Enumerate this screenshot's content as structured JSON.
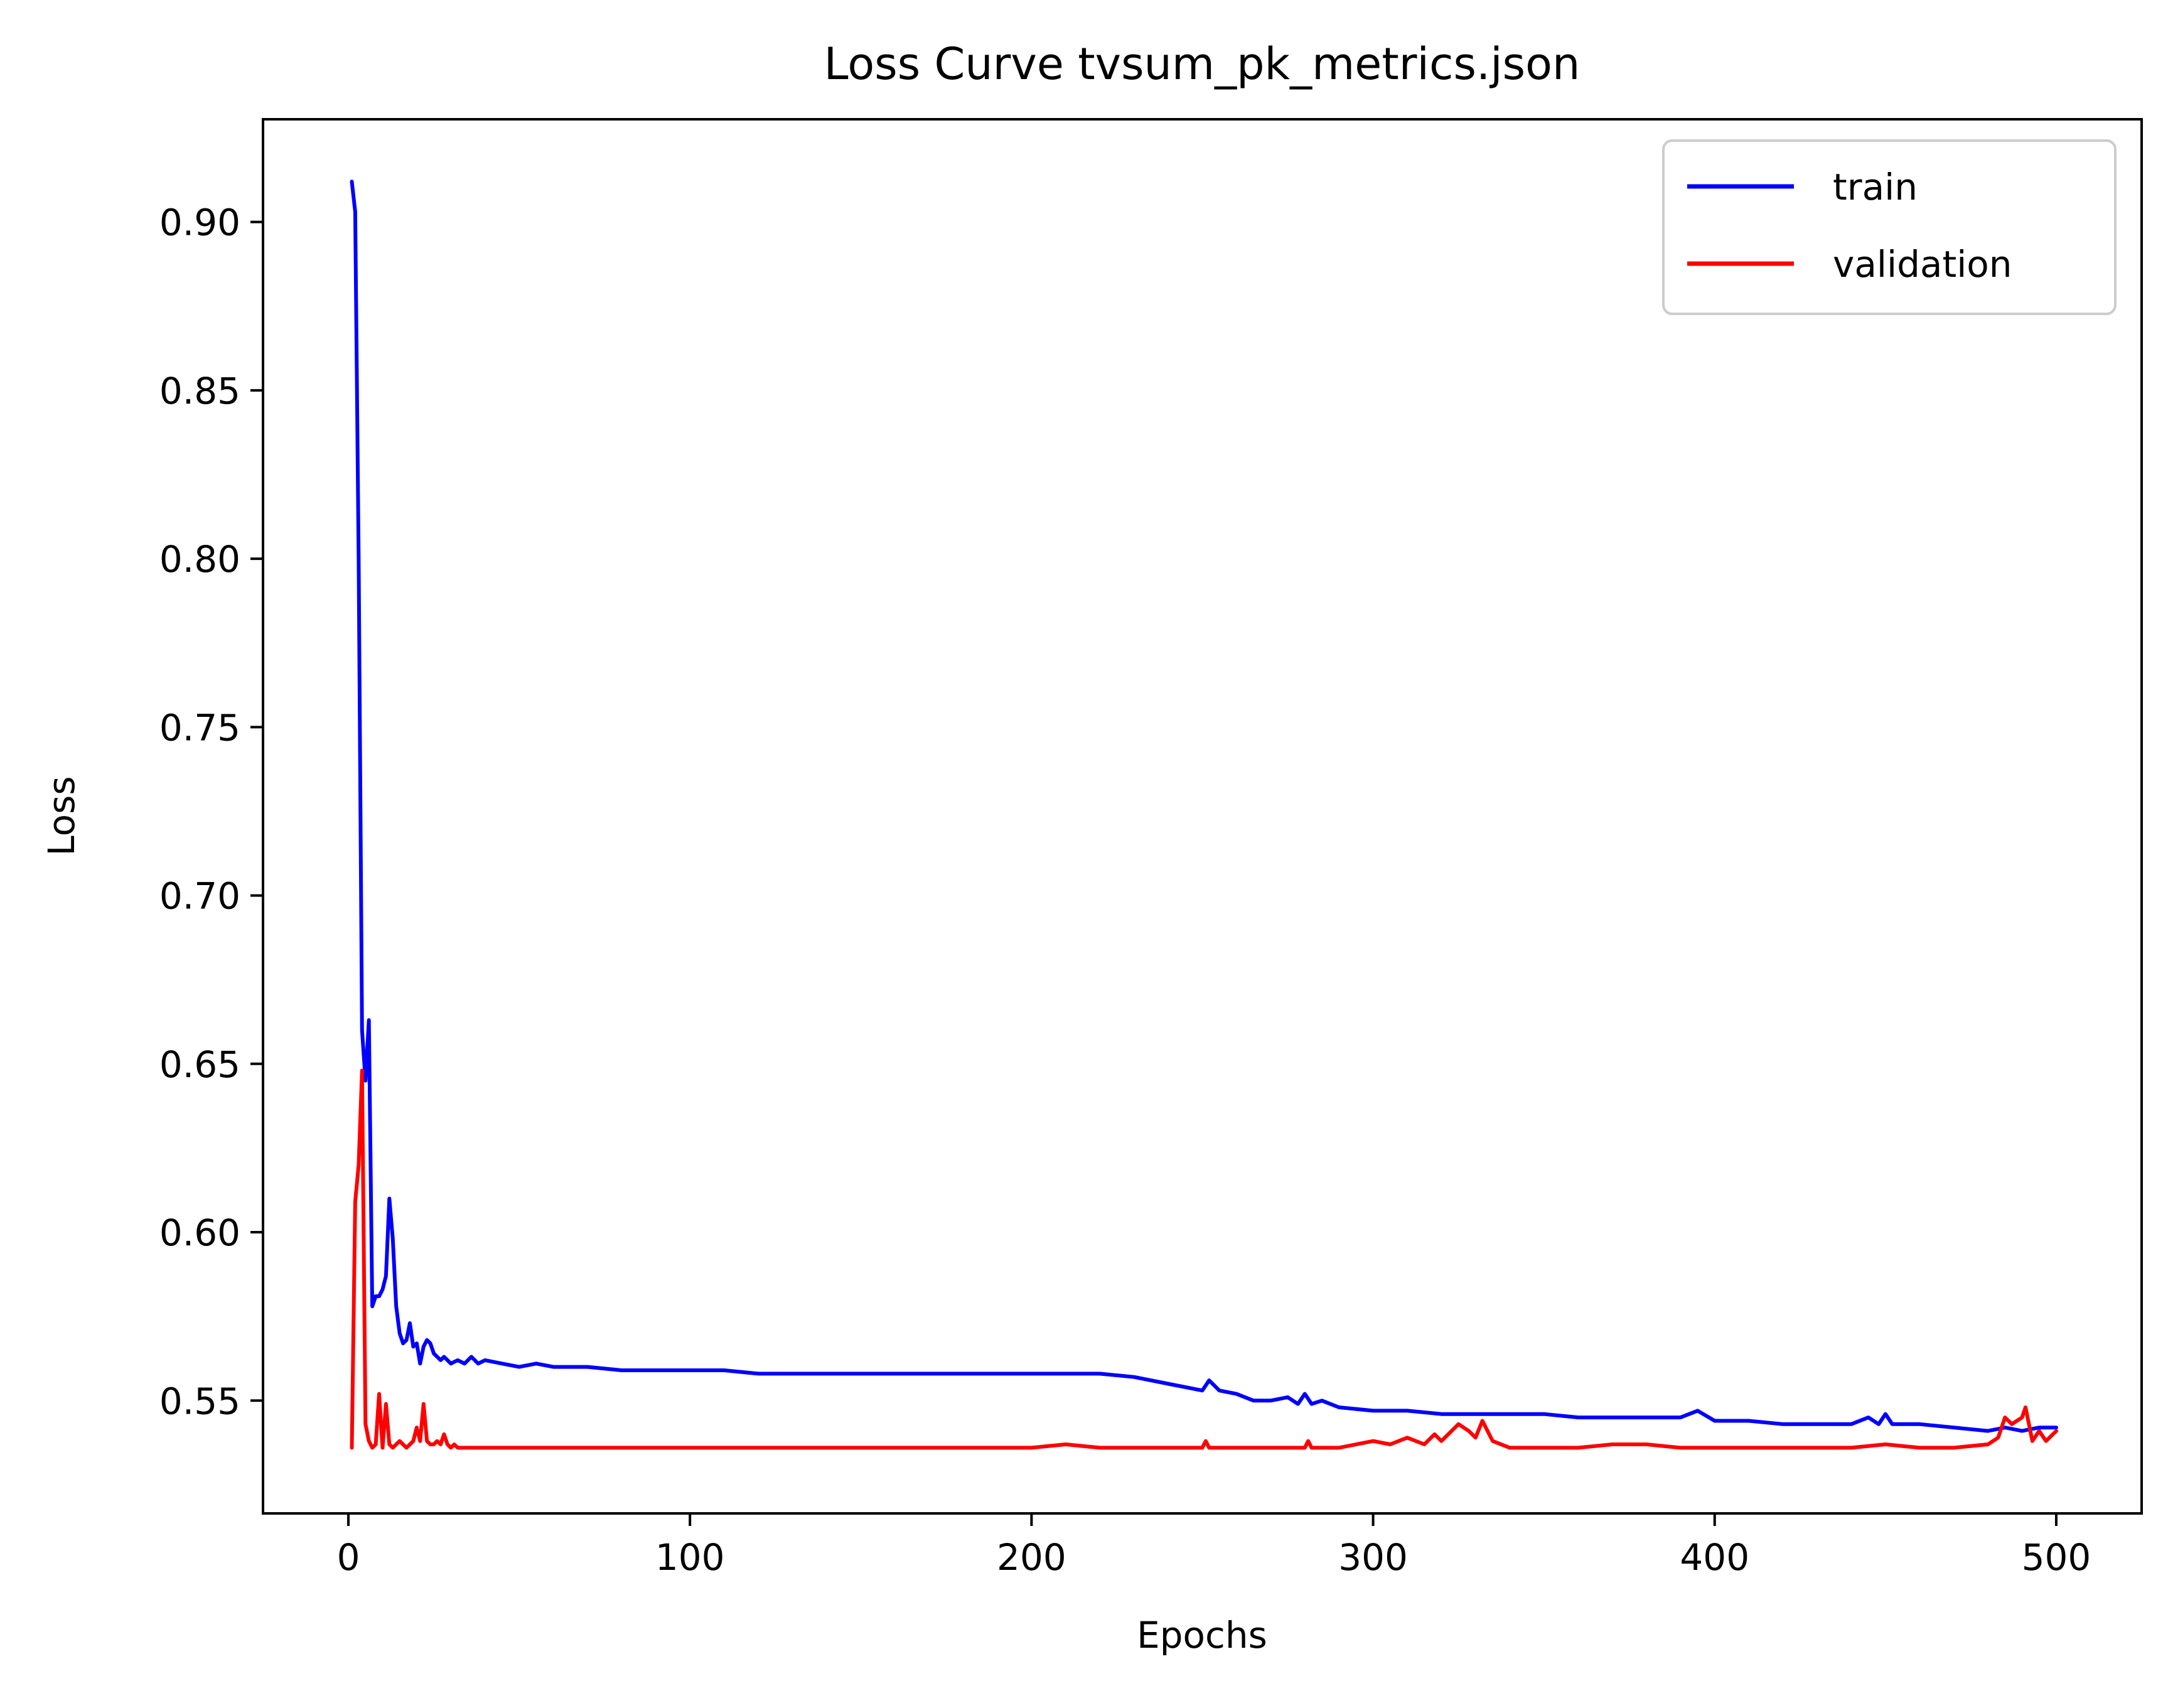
{
  "chart_data": {
    "type": "line",
    "title": "Loss Curve tvsum_pk_metrics.json",
    "xlabel": "Epochs",
    "ylabel": "Loss",
    "xlim": [
      -25,
      525
    ],
    "ylim": [
      0.5165,
      0.9305
    ],
    "xticks": [
      0,
      100,
      200,
      300,
      400,
      500
    ],
    "yticks": [
      0.55,
      0.6,
      0.65,
      0.7,
      0.75,
      0.8,
      0.85,
      0.9
    ],
    "ytick_labels": [
      "0.55",
      "0.60",
      "0.65",
      "0.70",
      "0.75",
      "0.80",
      "0.85",
      "0.90"
    ],
    "grid": false,
    "legend": {
      "position": "top-right",
      "entries": [
        "train",
        "validation"
      ]
    },
    "series": [
      {
        "name": "train",
        "color": "#0000ff",
        "x": [
          1,
          2,
          3,
          4,
          5,
          6,
          7,
          8,
          9,
          10,
          11,
          12,
          13,
          14,
          15,
          16,
          17,
          18,
          19,
          20,
          21,
          22,
          23,
          24,
          25,
          26,
          27,
          28,
          30,
          32,
          34,
          36,
          38,
          40,
          45,
          50,
          55,
          60,
          70,
          80,
          90,
          100,
          110,
          120,
          130,
          140,
          150,
          160,
          170,
          180,
          190,
          200,
          210,
          220,
          230,
          240,
          250,
          252,
          255,
          260,
          265,
          270,
          275,
          278,
          280,
          282,
          285,
          290,
          300,
          310,
          320,
          330,
          340,
          350,
          360,
          370,
          380,
          390,
          395,
          400,
          410,
          420,
          430,
          440,
          445,
          448,
          450,
          452,
          455,
          460,
          470,
          480,
          485,
          490,
          495,
          500
        ],
        "y": [
          0.912,
          0.903,
          0.8,
          0.66,
          0.645,
          0.663,
          0.578,
          0.581,
          0.581,
          0.583,
          0.587,
          0.61,
          0.598,
          0.578,
          0.57,
          0.567,
          0.568,
          0.573,
          0.566,
          0.567,
          0.561,
          0.566,
          0.568,
          0.567,
          0.564,
          0.563,
          0.562,
          0.563,
          0.561,
          0.562,
          0.561,
          0.563,
          0.561,
          0.562,
          0.561,
          0.56,
          0.561,
          0.56,
          0.56,
          0.559,
          0.559,
          0.559,
          0.559,
          0.558,
          0.558,
          0.558,
          0.558,
          0.558,
          0.558,
          0.558,
          0.558,
          0.558,
          0.558,
          0.558,
          0.557,
          0.555,
          0.553,
          0.556,
          0.553,
          0.552,
          0.55,
          0.55,
          0.551,
          0.549,
          0.552,
          0.549,
          0.55,
          0.548,
          0.547,
          0.547,
          0.546,
          0.546,
          0.546,
          0.546,
          0.545,
          0.545,
          0.545,
          0.545,
          0.547,
          0.544,
          0.544,
          0.543,
          0.543,
          0.543,
          0.545,
          0.543,
          0.546,
          0.543,
          0.543,
          0.543,
          0.542,
          0.541,
          0.542,
          0.541,
          0.542,
          0.542
        ]
      },
      {
        "name": "validation",
        "color": "#ff0000",
        "x": [
          1,
          2,
          3,
          4,
          5,
          6,
          7,
          8,
          9,
          10,
          11,
          12,
          13,
          14,
          15,
          16,
          17,
          18,
          19,
          20,
          21,
          22,
          23,
          24,
          25,
          26,
          27,
          28,
          29,
          30,
          31,
          32,
          35,
          40,
          50,
          60,
          70,
          80,
          90,
          100,
          110,
          120,
          130,
          140,
          150,
          160,
          170,
          180,
          190,
          200,
          210,
          220,
          230,
          240,
          250,
          251,
          252,
          260,
          270,
          280,
          281,
          282,
          290,
          300,
          305,
          310,
          315,
          318,
          320,
          325,
          328,
          330,
          332,
          335,
          340,
          350,
          360,
          370,
          380,
          390,
          400,
          410,
          420,
          430,
          440,
          450,
          460,
          470,
          480,
          483,
          485,
          487,
          490,
          491,
          493,
          495,
          497,
          500
        ],
        "y": [
          0.536,
          0.609,
          0.62,
          0.648,
          0.543,
          0.538,
          0.536,
          0.537,
          0.552,
          0.536,
          0.549,
          0.537,
          0.536,
          0.537,
          0.538,
          0.537,
          0.536,
          0.537,
          0.538,
          0.542,
          0.538,
          0.549,
          0.538,
          0.537,
          0.537,
          0.538,
          0.537,
          0.54,
          0.537,
          0.536,
          0.537,
          0.536,
          0.536,
          0.536,
          0.536,
          0.536,
          0.536,
          0.536,
          0.536,
          0.536,
          0.536,
          0.536,
          0.536,
          0.536,
          0.536,
          0.536,
          0.536,
          0.536,
          0.536,
          0.536,
          0.537,
          0.536,
          0.536,
          0.536,
          0.536,
          0.538,
          0.536,
          0.536,
          0.536,
          0.536,
          0.538,
          0.536,
          0.536,
          0.538,
          0.537,
          0.539,
          0.537,
          0.54,
          0.538,
          0.543,
          0.541,
          0.539,
          0.544,
          0.538,
          0.536,
          0.536,
          0.536,
          0.537,
          0.537,
          0.536,
          0.536,
          0.536,
          0.536,
          0.536,
          0.536,
          0.537,
          0.536,
          0.536,
          0.537,
          0.539,
          0.545,
          0.543,
          0.545,
          0.548,
          0.538,
          0.541,
          0.538,
          0.541
        ]
      }
    ]
  }
}
